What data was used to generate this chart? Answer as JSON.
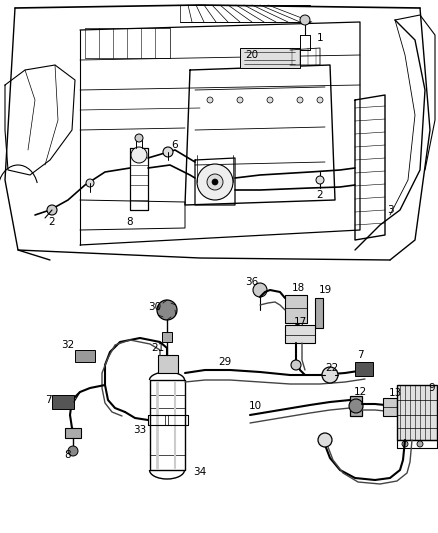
{
  "background_color": "#ffffff",
  "line_color": "#000000",
  "gray_light": "#cccccc",
  "gray_mid": "#999999",
  "gray_dark": "#666666",
  "fig_width": 4.38,
  "fig_height": 5.33,
  "dpi": 100
}
